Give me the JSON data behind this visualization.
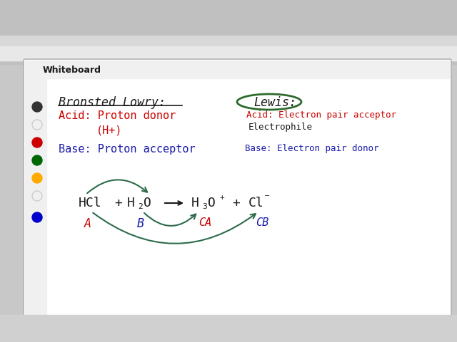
{
  "bg_color": "#c8c8c8",
  "whiteboard_bg": "#ffffff",
  "color_black": "#1a1a1a",
  "color_red": "#cc0000",
  "color_blue": "#1a1aaa",
  "color_green_dark": "#2d6b2d",
  "color_curve": "#2d6b4a",
  "bronsted_title": "Bronsted Lowry:",
  "lewis_title": "Lewis:",
  "bl_acid_1": "Acid: Proton donor",
  "bl_acid_2": "(H+)",
  "bl_base": "Base: Proton acceptor",
  "lw_acid_1": "Acid: Electron pair acceptor",
  "lw_acid_2": "Electrophile",
  "lw_base": "Base: Electron pair donor"
}
